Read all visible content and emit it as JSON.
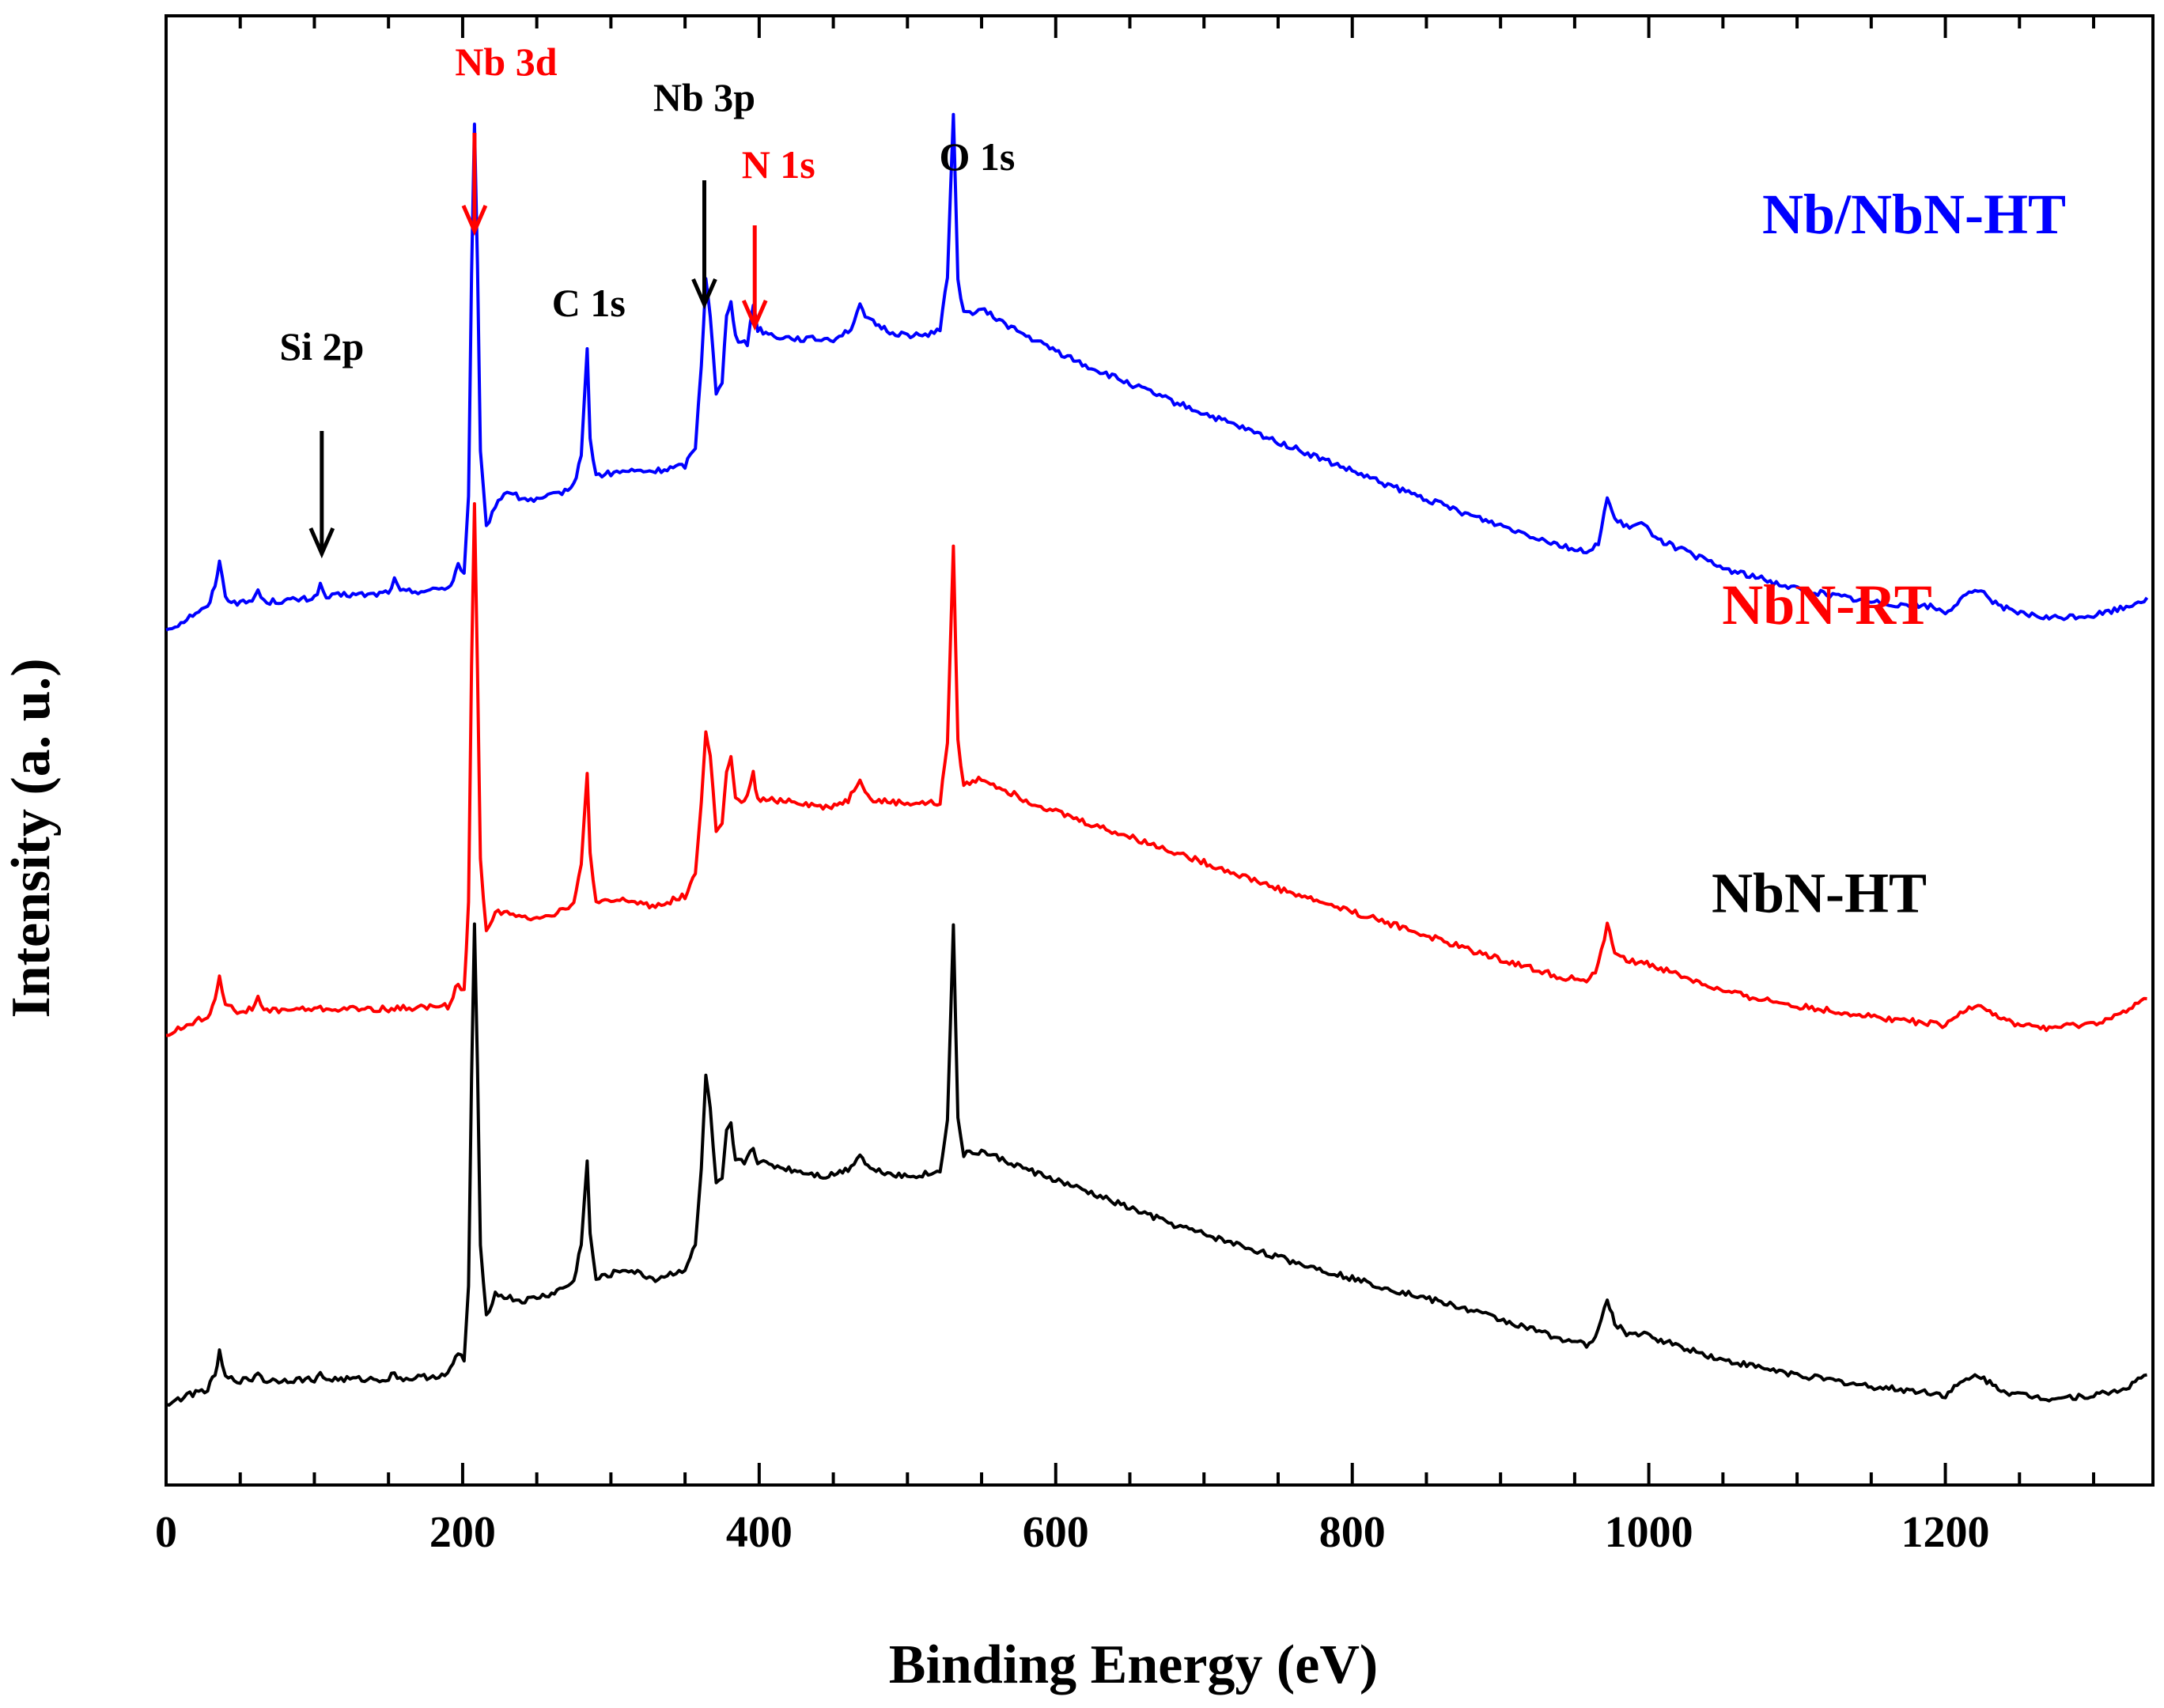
{
  "chart_data": {
    "type": "line",
    "title": "",
    "xlabel": "Binding Energy (eV)",
    "ylabel": "Intensity (a. u.)",
    "xlim": [
      0,
      1340
    ],
    "ylim": [
      0,
      1
    ],
    "x_ticks": [
      0,
      200,
      400,
      600,
      800,
      1000,
      1200
    ],
    "y_ticks": [],
    "grid": false,
    "peak_labels": [
      {
        "text": "Si 2p",
        "x": 105,
        "color": "#000000",
        "arrow": true
      },
      {
        "text": "Nb 3d",
        "x": 208,
        "color": "#ff0000",
        "arrow": true
      },
      {
        "text": "C 1s",
        "x": 285,
        "color": "#000000",
        "arrow": false
      },
      {
        "text": "Nb 3p",
        "x": 363,
        "color": "#000000",
        "arrow": true
      },
      {
        "text": "N 1s",
        "x": 397,
        "color": "#ff0000",
        "arrow": true
      },
      {
        "text": "O 1s",
        "x": 531,
        "color": "#000000",
        "arrow": false
      }
    ],
    "series": [
      {
        "name": "Nb/NbN-HT",
        "color": "#0000ff",
        "offset": 0.582,
        "points": [
          [
            0,
            0.0
          ],
          [
            10,
            0.005
          ],
          [
            20,
            0.012
          ],
          [
            28,
            0.015
          ],
          [
            33,
            0.03
          ],
          [
            36,
            0.048
          ],
          [
            40,
            0.022
          ],
          [
            50,
            0.018
          ],
          [
            58,
            0.02
          ],
          [
            62,
            0.027
          ],
          [
            66,
            0.019
          ],
          [
            80,
            0.02
          ],
          [
            95,
            0.021
          ],
          [
            100,
            0.022
          ],
          [
            104,
            0.03
          ],
          [
            108,
            0.022
          ],
          [
            120,
            0.024
          ],
          [
            140,
            0.024
          ],
          [
            150,
            0.026
          ],
          [
            154,
            0.034
          ],
          [
            158,
            0.026
          ],
          [
            180,
            0.027
          ],
          [
            192,
            0.03
          ],
          [
            197,
            0.045
          ],
          [
            201,
            0.038
          ],
          [
            204,
            0.09
          ],
          [
            206,
            0.24
          ],
          [
            208,
            0.343
          ],
          [
            210,
            0.25
          ],
          [
            212,
            0.12
          ],
          [
            216,
            0.07
          ],
          [
            222,
            0.085
          ],
          [
            230,
            0.095
          ],
          [
            238,
            0.09
          ],
          [
            250,
            0.088
          ],
          [
            265,
            0.093
          ],
          [
            275,
            0.098
          ],
          [
            280,
            0.12
          ],
          [
            284,
            0.19
          ],
          [
            286,
            0.13
          ],
          [
            290,
            0.105
          ],
          [
            310,
            0.108
          ],
          [
            330,
            0.108
          ],
          [
            350,
            0.112
          ],
          [
            357,
            0.125
          ],
          [
            361,
            0.18
          ],
          [
            364,
            0.24
          ],
          [
            367,
            0.215
          ],
          [
            371,
            0.16
          ],
          [
            375,
            0.168
          ],
          [
            378,
            0.215
          ],
          [
            381,
            0.225
          ],
          [
            384,
            0.2
          ],
          [
            388,
            0.195
          ],
          [
            392,
            0.195
          ],
          [
            396,
            0.222
          ],
          [
            399,
            0.205
          ],
          [
            410,
            0.2
          ],
          [
            430,
            0.198
          ],
          [
            450,
            0.198
          ],
          [
            462,
            0.205
          ],
          [
            468,
            0.22
          ],
          [
            475,
            0.21
          ],
          [
            490,
            0.202
          ],
          [
            510,
            0.2
          ],
          [
            522,
            0.205
          ],
          [
            527,
            0.24
          ],
          [
            531,
            0.352
          ],
          [
            534,
            0.24
          ],
          [
            538,
            0.215
          ],
          [
            550,
            0.218
          ],
          [
            580,
            0.2
          ],
          [
            620,
            0.18
          ],
          [
            680,
            0.155
          ],
          [
            750,
            0.128
          ],
          [
            820,
            0.1
          ],
          [
            880,
            0.078
          ],
          [
            940,
            0.058
          ],
          [
            960,
            0.052
          ],
          [
            966,
            0.06
          ],
          [
            972,
            0.09
          ],
          [
            977,
            0.075
          ],
          [
            985,
            0.07
          ],
          [
            995,
            0.072
          ],
          [
            1010,
            0.06
          ],
          [
            1050,
            0.042
          ],
          [
            1100,
            0.028
          ],
          [
            1150,
            0.019
          ],
          [
            1190,
            0.016
          ],
          [
            1200,
            0.012
          ],
          [
            1210,
            0.02
          ],
          [
            1222,
            0.028
          ],
          [
            1232,
            0.02
          ],
          [
            1245,
            0.012
          ],
          [
            1270,
            0.008
          ],
          [
            1300,
            0.01
          ],
          [
            1320,
            0.015
          ],
          [
            1336,
            0.022
          ]
        ]
      },
      {
        "name": "NbN-RT",
        "color": "#ff0000",
        "offset": 0.306,
        "points": [
          [
            0,
            0.0
          ],
          [
            10,
            0.005
          ],
          [
            20,
            0.01
          ],
          [
            28,
            0.012
          ],
          [
            33,
            0.025
          ],
          [
            36,
            0.042
          ],
          [
            40,
            0.02
          ],
          [
            50,
            0.016
          ],
          [
            58,
            0.018
          ],
          [
            62,
            0.025
          ],
          [
            66,
            0.017
          ],
          [
            100,
            0.018
          ],
          [
            150,
            0.018
          ],
          [
            190,
            0.02
          ],
          [
            197,
            0.035
          ],
          [
            201,
            0.03
          ],
          [
            204,
            0.09
          ],
          [
            206,
            0.25
          ],
          [
            208,
            0.362
          ],
          [
            210,
            0.25
          ],
          [
            212,
            0.12
          ],
          [
            216,
            0.07
          ],
          [
            222,
            0.085
          ],
          [
            240,
            0.08
          ],
          [
            260,
            0.082
          ],
          [
            275,
            0.09
          ],
          [
            280,
            0.115
          ],
          [
            284,
            0.178
          ],
          [
            286,
            0.125
          ],
          [
            290,
            0.09
          ],
          [
            310,
            0.092
          ],
          [
            330,
            0.088
          ],
          [
            350,
            0.095
          ],
          [
            357,
            0.11
          ],
          [
            361,
            0.16
          ],
          [
            364,
            0.206
          ],
          [
            367,
            0.19
          ],
          [
            371,
            0.14
          ],
          [
            375,
            0.145
          ],
          [
            378,
            0.178
          ],
          [
            381,
            0.19
          ],
          [
            384,
            0.16
          ],
          [
            390,
            0.158
          ],
          [
            396,
            0.178
          ],
          [
            399,
            0.16
          ],
          [
            420,
            0.16
          ],
          [
            445,
            0.155
          ],
          [
            460,
            0.16
          ],
          [
            468,
            0.175
          ],
          [
            475,
            0.16
          ],
          [
            500,
            0.158
          ],
          [
            522,
            0.158
          ],
          [
            527,
            0.2
          ],
          [
            531,
            0.335
          ],
          [
            534,
            0.2
          ],
          [
            538,
            0.17
          ],
          [
            550,
            0.175
          ],
          [
            580,
            0.16
          ],
          [
            620,
            0.145
          ],
          [
            680,
            0.125
          ],
          [
            750,
            0.1
          ],
          [
            820,
            0.078
          ],
          [
            880,
            0.058
          ],
          [
            940,
            0.04
          ],
          [
            960,
            0.037
          ],
          [
            966,
            0.048
          ],
          [
            972,
            0.075
          ],
          [
            977,
            0.058
          ],
          [
            985,
            0.05
          ],
          [
            995,
            0.05
          ],
          [
            1010,
            0.045
          ],
          [
            1050,
            0.03
          ],
          [
            1100,
            0.02
          ],
          [
            1150,
            0.013
          ],
          [
            1190,
            0.008
          ],
          [
            1200,
            0.006
          ],
          [
            1210,
            0.015
          ],
          [
            1222,
            0.022
          ],
          [
            1232,
            0.015
          ],
          [
            1245,
            0.008
          ],
          [
            1270,
            0.005
          ],
          [
            1300,
            0.008
          ],
          [
            1320,
            0.015
          ],
          [
            1336,
            0.025
          ]
        ]
      },
      {
        "name": "NbN-HT",
        "color": "#000000",
        "offset": 0.055,
        "points": [
          [
            0,
            0.0
          ],
          [
            10,
            0.004
          ],
          [
            20,
            0.008
          ],
          [
            28,
            0.01
          ],
          [
            33,
            0.02
          ],
          [
            36,
            0.035
          ],
          [
            40,
            0.018
          ],
          [
            50,
            0.016
          ],
          [
            58,
            0.017
          ],
          [
            62,
            0.022
          ],
          [
            66,
            0.016
          ],
          [
            100,
            0.017
          ],
          [
            104,
            0.02
          ],
          [
            108,
            0.017
          ],
          [
            150,
            0.017
          ],
          [
            154,
            0.022
          ],
          [
            158,
            0.017
          ],
          [
            190,
            0.02
          ],
          [
            197,
            0.035
          ],
          [
            201,
            0.03
          ],
          [
            204,
            0.08
          ],
          [
            206,
            0.22
          ],
          [
            208,
            0.325
          ],
          [
            210,
            0.23
          ],
          [
            212,
            0.11
          ],
          [
            216,
            0.06
          ],
          [
            222,
            0.075
          ],
          [
            240,
            0.07
          ],
          [
            260,
            0.075
          ],
          [
            275,
            0.083
          ],
          [
            280,
            0.11
          ],
          [
            284,
            0.165
          ],
          [
            286,
            0.115
          ],
          [
            290,
            0.085
          ],
          [
            310,
            0.092
          ],
          [
            330,
            0.085
          ],
          [
            350,
            0.092
          ],
          [
            357,
            0.108
          ],
          [
            361,
            0.16
          ],
          [
            364,
            0.225
          ],
          [
            367,
            0.2
          ],
          [
            371,
            0.15
          ],
          [
            375,
            0.152
          ],
          [
            378,
            0.185
          ],
          [
            381,
            0.19
          ],
          [
            384,
            0.165
          ],
          [
            390,
            0.165
          ],
          [
            396,
            0.175
          ],
          [
            399,
            0.165
          ],
          [
            420,
            0.16
          ],
          [
            445,
            0.155
          ],
          [
            460,
            0.16
          ],
          [
            468,
            0.17
          ],
          [
            475,
            0.16
          ],
          [
            500,
            0.155
          ],
          [
            522,
            0.158
          ],
          [
            527,
            0.195
          ],
          [
            531,
            0.325
          ],
          [
            534,
            0.195
          ],
          [
            538,
            0.17
          ],
          [
            550,
            0.172
          ],
          [
            580,
            0.16
          ],
          [
            620,
            0.145
          ],
          [
            680,
            0.122
          ],
          [
            750,
            0.1
          ],
          [
            820,
            0.08
          ],
          [
            880,
            0.064
          ],
          [
            940,
            0.045
          ],
          [
            960,
            0.04
          ],
          [
            966,
            0.05
          ],
          [
            972,
            0.072
          ],
          [
            977,
            0.055
          ],
          [
            985,
            0.048
          ],
          [
            995,
            0.048
          ],
          [
            1010,
            0.043
          ],
          [
            1050,
            0.03
          ],
          [
            1100,
            0.02
          ],
          [
            1150,
            0.012
          ],
          [
            1190,
            0.008
          ],
          [
            1200,
            0.006
          ],
          [
            1210,
            0.014
          ],
          [
            1222,
            0.02
          ],
          [
            1232,
            0.013
          ],
          [
            1245,
            0.007
          ],
          [
            1270,
            0.004
          ],
          [
            1300,
            0.006
          ],
          [
            1320,
            0.01
          ],
          [
            1336,
            0.02
          ]
        ]
      }
    ]
  }
}
